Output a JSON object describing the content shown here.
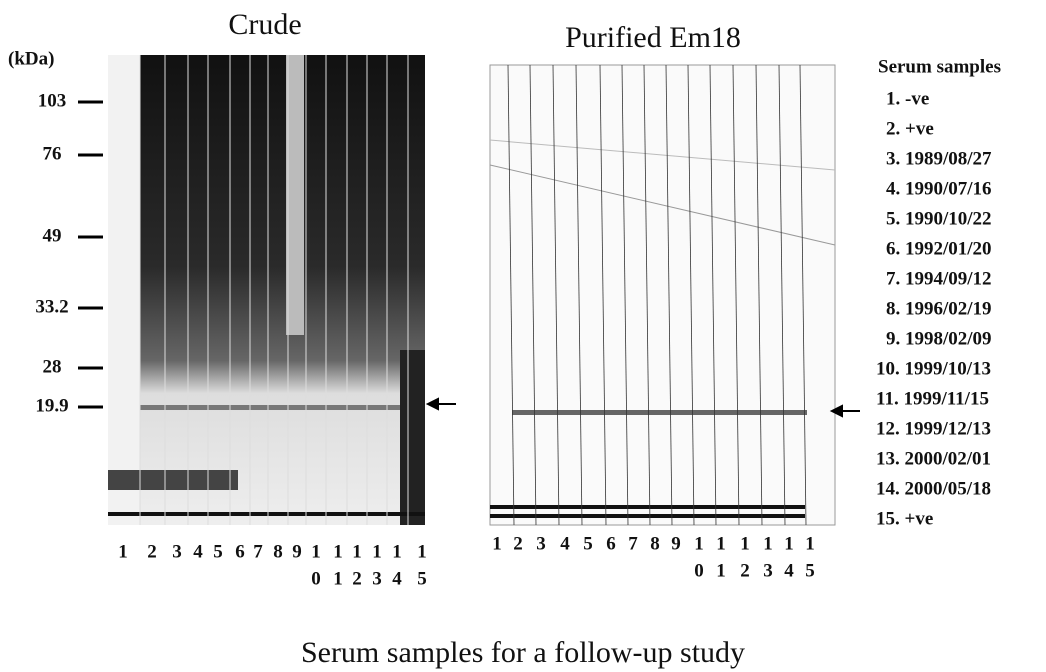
{
  "header": {
    "left_title": "Crude",
    "right_title": "Purified Em18",
    "kda_label": "(kDa)"
  },
  "markers": [
    "103",
    "76",
    "49",
    "33.2",
    "28",
    "19.9"
  ],
  "crude_lanes": [
    [
      "1"
    ],
    [
      "2"
    ],
    [
      "3"
    ],
    [
      "4"
    ],
    [
      "5"
    ],
    [
      "6"
    ],
    [
      "7"
    ],
    [
      "8"
    ],
    [
      "9"
    ],
    [
      "1",
      "0"
    ],
    [
      "1",
      "1"
    ],
    [
      "1",
      "2"
    ],
    [
      "1",
      "3"
    ],
    [
      "1",
      "4"
    ],
    [
      "1",
      "5"
    ]
  ],
  "purified_lanes": [
    [
      "1"
    ],
    [
      "2"
    ],
    [
      "3"
    ],
    [
      "4"
    ],
    [
      "5"
    ],
    [
      "6"
    ],
    [
      "7"
    ],
    [
      "8"
    ],
    [
      "9"
    ],
    [
      "1",
      "0"
    ],
    [
      "1",
      "1"
    ],
    [
      "1",
      "2"
    ],
    [
      "1",
      "3"
    ],
    [
      "1",
      "4"
    ],
    [
      "1",
      "5"
    ]
  ],
  "legend": {
    "title": "Serum samples",
    "items": [
      "1. -ve",
      "2. +ve",
      "3. 1989/08/27",
      "4. 1990/07/16",
      "5. 1990/10/22",
      "6. 1992/01/20",
      "7. 1994/09/12",
      "8. 1996/02/19",
      "9. 1998/02/09",
      "10. 1999/10/13",
      "11. 1999/11/15",
      "12. 1999/12/13",
      "13. 2000/02/01",
      "14. 2000/05/18",
      "15. +ve"
    ]
  },
  "caption": "Serum  samples for a follow-up study"
}
